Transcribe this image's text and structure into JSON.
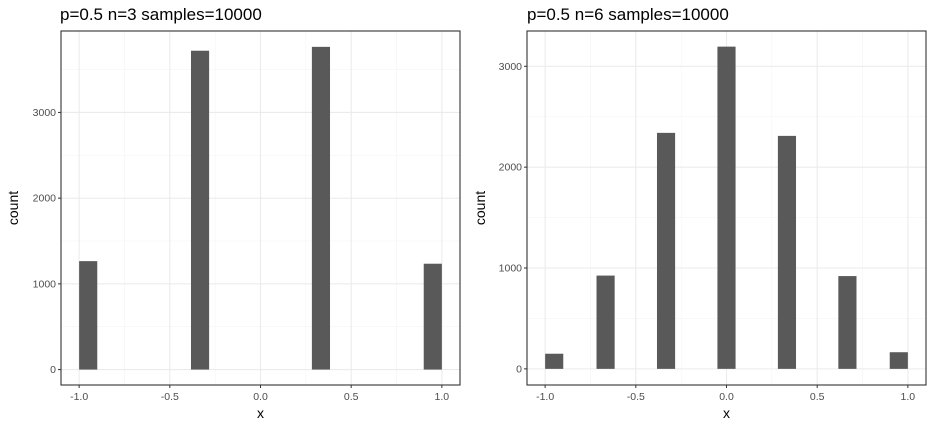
{
  "chart_data": [
    {
      "type": "bar",
      "title": "p=0.5 n=3 samples=10000",
      "xlabel": "x",
      "ylabel": "count",
      "x_ticks": [
        -1.0,
        -0.5,
        0.0,
        0.5,
        1.0
      ],
      "x_tick_labels": [
        "-1.0",
        "-0.5",
        "0.0",
        "0.5",
        "1.0"
      ],
      "y_ticks": [
        0,
        1000,
        2000,
        3000
      ],
      "y_tick_labels": [
        "0",
        "1000",
        "2000",
        "3000"
      ],
      "xlim": [
        -1.1,
        1.1
      ],
      "ylim": [
        -180,
        3950
      ],
      "bin_width": 0.1,
      "grid": true,
      "bar_color": "#595959",
      "bars": [
        {
          "x": -0.95,
          "value": 1265
        },
        {
          "x": -0.3333,
          "value": 3720
        },
        {
          "x": 0.3333,
          "value": 3765
        },
        {
          "x": 0.95,
          "value": 1235
        }
      ]
    },
    {
      "type": "bar",
      "title": "p=0.5 n=6 samples=10000",
      "xlabel": "x",
      "ylabel": "count",
      "x_ticks": [
        -1.0,
        -0.5,
        0.0,
        0.5,
        1.0
      ],
      "x_tick_labels": [
        "-1.0",
        "-0.5",
        "0.0",
        "0.5",
        "1.0"
      ],
      "y_ticks": [
        0,
        1000,
        2000,
        3000
      ],
      "y_tick_labels": [
        "0",
        "1000",
        "2000",
        "3000"
      ],
      "xlim": [
        -1.1,
        1.1
      ],
      "ylim": [
        -160,
        3350
      ],
      "bin_width": 0.1,
      "grid": true,
      "bar_color": "#595959",
      "bars": [
        {
          "x": -0.95,
          "value": 150
        },
        {
          "x": -0.6667,
          "value": 925
        },
        {
          "x": -0.3333,
          "value": 2340
        },
        {
          "x": 0.0,
          "value": 3195
        },
        {
          "x": 0.3333,
          "value": 2310
        },
        {
          "x": 0.6667,
          "value": 920
        },
        {
          "x": 0.95,
          "value": 165
        }
      ]
    }
  ]
}
